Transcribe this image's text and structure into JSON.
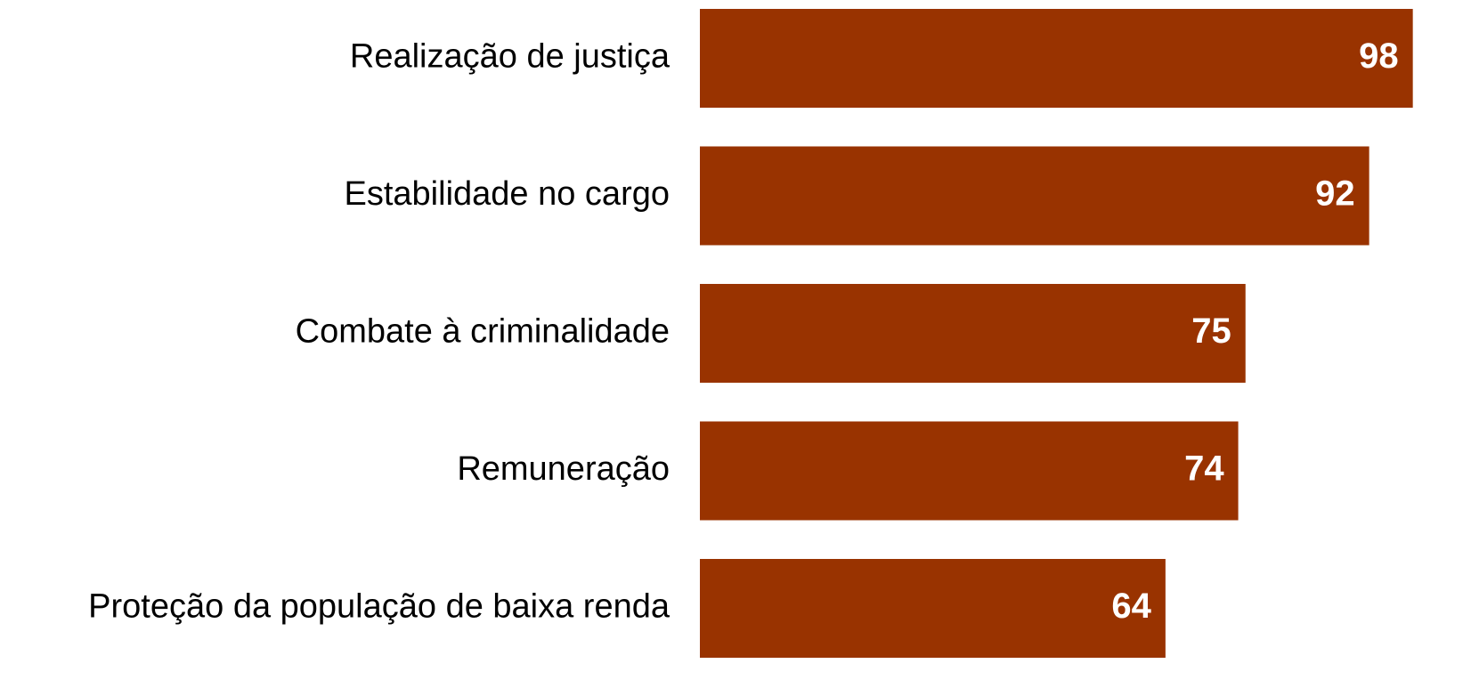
{
  "chart_data": {
    "type": "bar",
    "orientation": "horizontal",
    "categories": [
      "Realização de justiça",
      "Estabilidade no cargo",
      "Combate à criminalidade",
      "Remuneração",
      "Proteção da população de baixa renda"
    ],
    "values": [
      98,
      92,
      75,
      74,
      64
    ],
    "color": "#993300"
  }
}
